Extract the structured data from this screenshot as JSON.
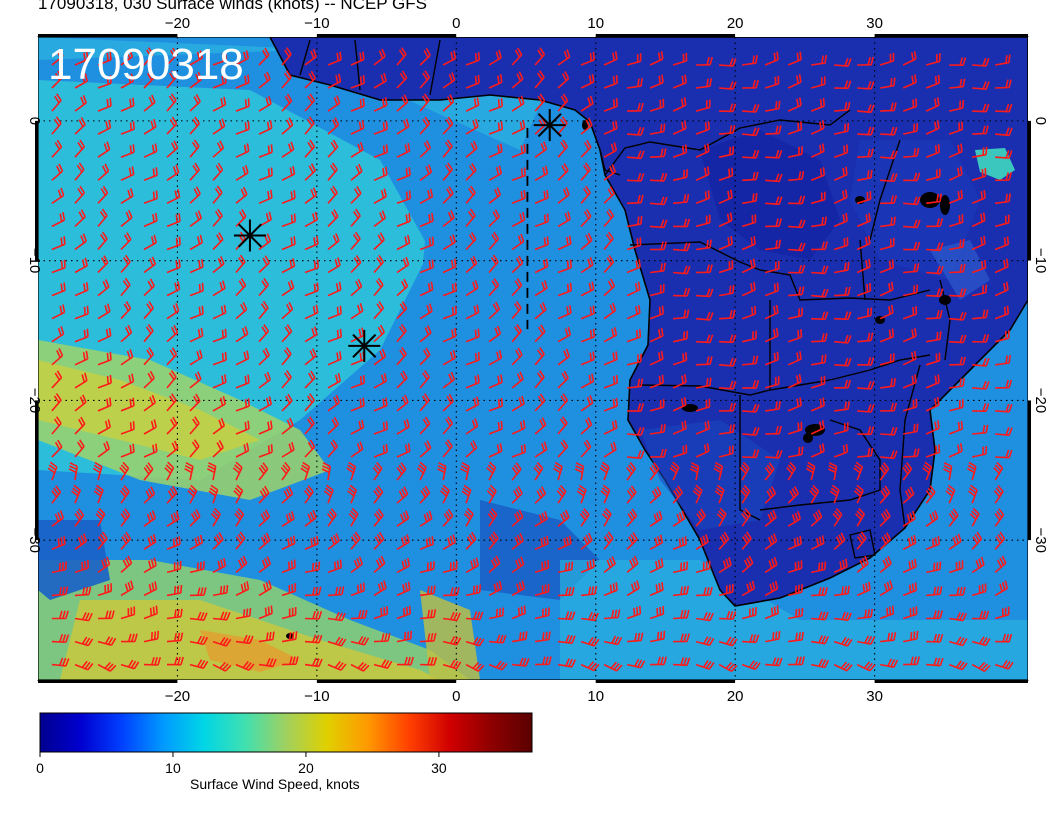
{
  "figure": {
    "title": "17090318, 030 Surface winds (knots) -- NCEP GFS",
    "stamp": "17090318"
  },
  "map": {
    "lon_range": [
      -30,
      41
    ],
    "lat_range": [
      -40,
      6
    ],
    "lon_ticks_top": [
      "−20",
      "−10",
      "0",
      "10",
      "20",
      "30"
    ],
    "lon_ticks_top_values": [
      -20,
      -10,
      0,
      10,
      20,
      30
    ],
    "lon_ticks_bottom": [
      "−20",
      "−10",
      "0",
      "10",
      "20",
      "30"
    ],
    "lon_ticks_bottom_values": [
      -20,
      -10,
      0,
      10,
      20,
      30
    ],
    "lat_ticks_left": [
      "0",
      "−10",
      "−20",
      "−30"
    ],
    "lat_ticks_right": [
      "0",
      "−10",
      "−20",
      "−30"
    ],
    "lat_ticks_values": [
      0,
      -10,
      -20,
      -30
    ],
    "gridlines": true,
    "barb_color": "#ff1a1a",
    "markers": [
      {
        "lon": -14.8,
        "lat": -8.2
      },
      {
        "lon": -6.6,
        "lat": -16.1
      },
      {
        "lon": 6.7,
        "lat": -0.3
      }
    ],
    "track": [
      [
        5.1,
        -0.5
      ],
      [
        5.1,
        -14.9
      ]
    ]
  },
  "colorbar": {
    "label": "Surface Wind Speed, knots",
    "tick_labels": [
      "0",
      "10",
      "20",
      "30"
    ],
    "tick_values": [
      0,
      10,
      20,
      30
    ],
    "range": [
      0,
      37
    ],
    "colors": [
      "#00008f",
      "#0000d0",
      "#0040ff",
      "#0099ff",
      "#00d6e6",
      "#40e0b0",
      "#a0d060",
      "#e0d000",
      "#ff9900",
      "#ff4000",
      "#d00000",
      "#8f0000",
      "#5a0000"
    ]
  }
}
